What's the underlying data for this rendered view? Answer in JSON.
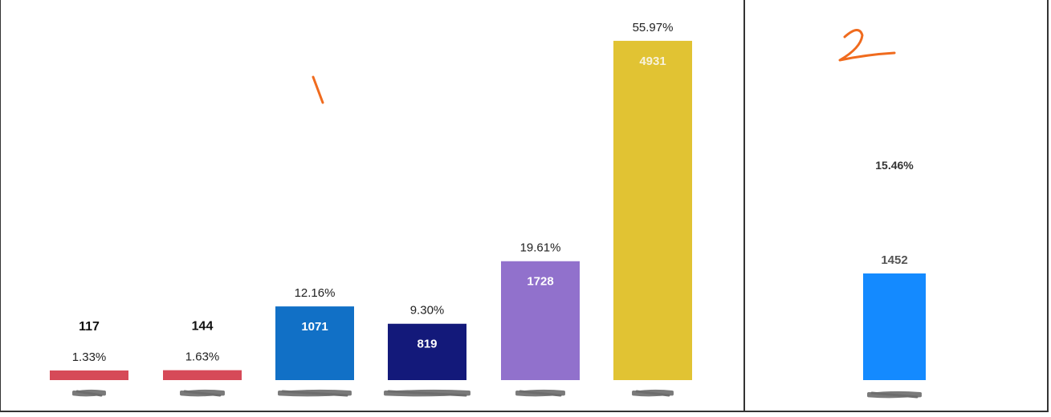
{
  "chart_data": [
    {
      "type": "bar",
      "panel_annotation": "1",
      "categories": [
        "",
        "",
        "",
        "",
        "",
        ""
      ],
      "values": [
        117,
        144,
        1071,
        819,
        1728,
        4931
      ],
      "percent_labels": [
        "1.33%",
        "1.63%",
        "12.16%",
        "9.30%",
        "19.61%",
        "55.97%"
      ],
      "value_labels": [
        "117",
        "144",
        "1071",
        "819",
        "1728",
        "4931"
      ],
      "colors": [
        "#d64a58",
        "#d64a58",
        "#1170c6",
        "#13197a",
        "#9171cc",
        "#e1c333"
      ],
      "ylim": [
        0,
        5000
      ],
      "grid": false,
      "legend": "none",
      "x_tick_labels_obscured": true
    },
    {
      "type": "bar",
      "panel_annotation": "2",
      "categories": [
        ""
      ],
      "values": [
        1452
      ],
      "percent_labels": [
        "15.46%"
      ],
      "value_labels": [
        "1452"
      ],
      "colors": [
        "#148aff"
      ],
      "ylim": [
        0,
        1600
      ],
      "grid": false,
      "legend": "none",
      "x_tick_labels_obscured": true
    }
  ]
}
